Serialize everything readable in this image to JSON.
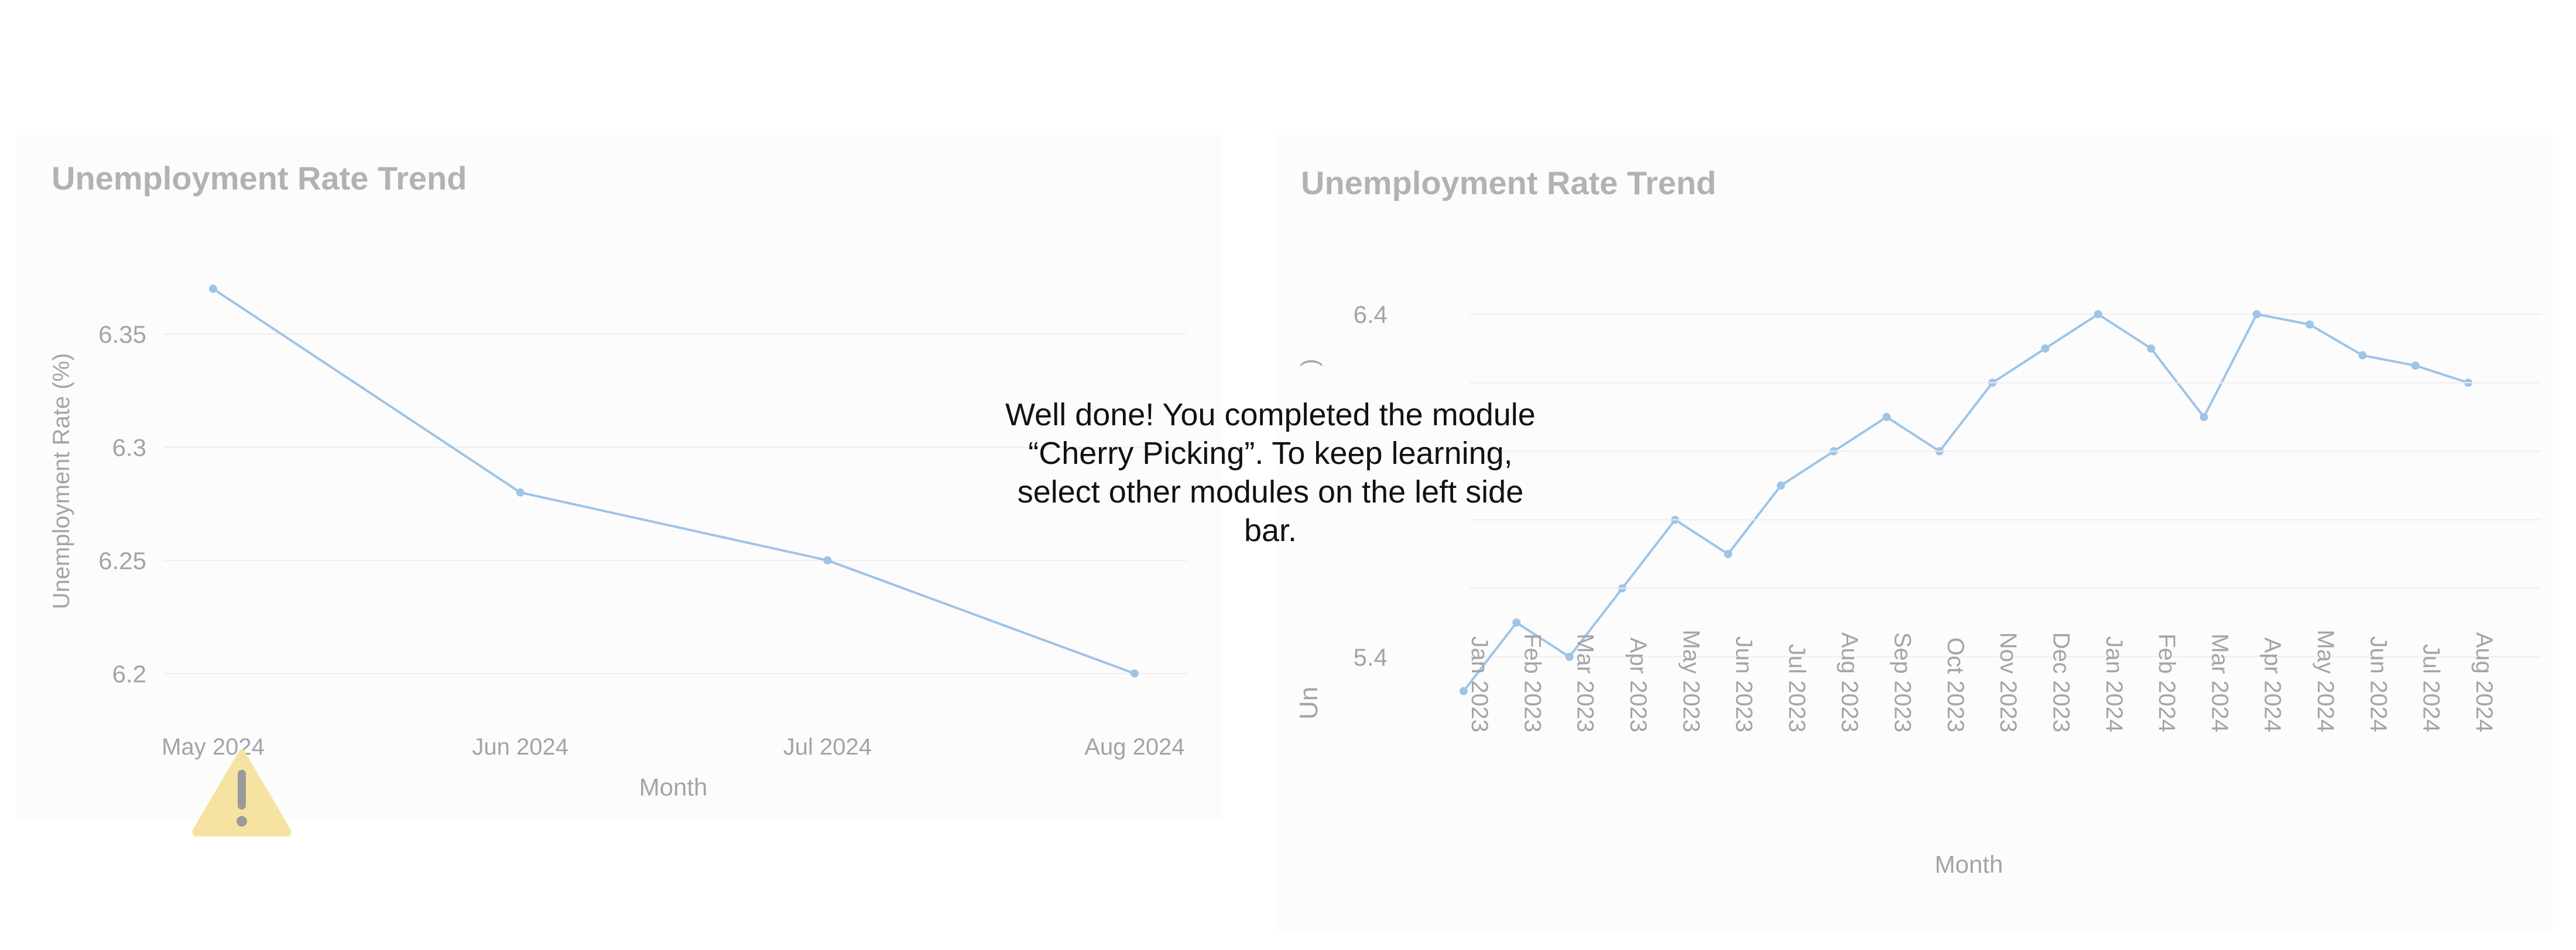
{
  "colors": {
    "line": "#9ec4e6",
    "point": "#9ec4e6",
    "grid": "#eeeeef",
    "text": "#a4a4a8",
    "title": "#b2b2b6",
    "warning": "#f7e3a1"
  },
  "message": {
    "lines": [
      "Well done! You completed the module",
      "“Cherry Picking”. To keep learning,",
      "select other modules on the left side",
      "bar."
    ]
  },
  "warning_icon": "warning-triangle-icon",
  "chart_data": [
    {
      "type": "line",
      "title": "Unemployment Rate Trend",
      "xlabel": "Month",
      "ylabel": "Unemployment Rate (%)",
      "categories": [
        "May 2024",
        "Jun 2024",
        "Jul 2024",
        "Aug 2024"
      ],
      "values": [
        6.37,
        6.28,
        6.25,
        6.2
      ],
      "yticks": [
        "6.2",
        "6.25",
        "6.3",
        "6.35"
      ],
      "ylim": [
        6.19,
        6.38
      ],
      "grid": true
    },
    {
      "type": "line",
      "title": "Unemployment Rate Trend",
      "xlabel": "Month",
      "ylabel_visible_fragments": [
        "Un",
        ")"
      ],
      "categories": [
        "Jan 2023",
        "Feb 2023",
        "Mar 2023",
        "Apr 2023",
        "May 2023",
        "Jun 2023",
        "Jul 2023",
        "Aug 2023",
        "Sep 2023",
        "Oct 2023",
        "Nov 2023",
        "Dec 2023",
        "Jan 2024",
        "Feb 2024",
        "Mar 2024",
        "Apr 2024",
        "May 2024",
        "Jun 2024",
        "Jul 2024",
        "Aug 2024"
      ],
      "values": [
        5.3,
        5.5,
        5.4,
        5.6,
        5.8,
        5.7,
        5.9,
        6.0,
        6.1,
        6.0,
        6.2,
        6.3,
        6.4,
        6.3,
        6.1,
        6.4,
        6.37,
        6.28,
        6.25,
        6.2
      ],
      "yticks": [
        "5.4",
        "6.4"
      ],
      "ylim": [
        5.2,
        6.6
      ],
      "grid": true
    }
  ]
}
